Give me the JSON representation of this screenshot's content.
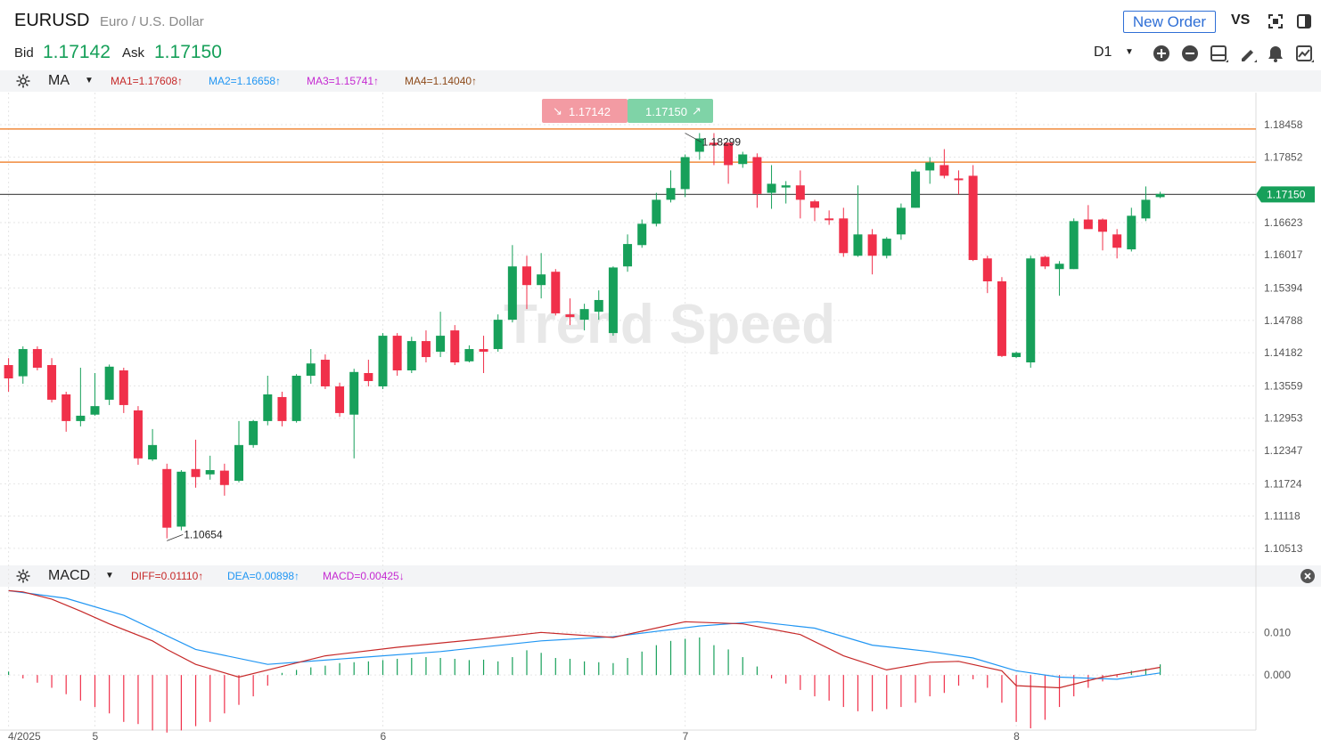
{
  "header": {
    "symbol": "EURUSD",
    "description": "Euro / U.S. Dollar",
    "bid_label": "Bid",
    "bid_value": "1.17142",
    "ask_label": "Ask",
    "ask_value": "1.17150",
    "new_order_label": "New Order",
    "vs_label": "VS",
    "timeframe": "D1",
    "watermark": "Trend Speed"
  },
  "toolbar_icons": [
    "expand-icon",
    "layout-icon",
    "zoom-in-icon",
    "zoom-out-icon",
    "panel-icon",
    "pencil-icon",
    "alert-bell-icon",
    "indicator-icon"
  ],
  "ma_bar": {
    "indicator": "MA",
    "values": [
      {
        "text": "MA1=1.17608↑",
        "color": "#c62828"
      },
      {
        "text": "MA2=1.16658↑",
        "color": "#2196f3"
      },
      {
        "text": "MA3=1.15741↑",
        "color": "#c52ad1"
      },
      {
        "text": "MA4=1.14040↑",
        "color": "#8d4a1a"
      }
    ]
  },
  "macd_bar": {
    "indicator": "MACD",
    "values": [
      {
        "text": "DIFF=0.01110↑",
        "color": "#c62828"
      },
      {
        "text": "DEA=0.00898↑",
        "color": "#2196f3"
      },
      {
        "text": "MACD=0.00425↓",
        "color": "#c52ad1"
      }
    ]
  },
  "quote_box": {
    "sell": "1.17142",
    "buy": "1.17150",
    "sell_color": "#f39ba3",
    "buy_color": "#7fd3a7"
  },
  "colors": {
    "up": "#17a05a",
    "down": "#f0304a",
    "orange_line": "#f08a3c",
    "price_line": "#555555",
    "diff": "#c62828",
    "dea": "#2196f3"
  },
  "chart_data": {
    "type": "candlestick",
    "yticks": [
      "1.18458",
      "1.17852",
      "1.16623",
      "1.16017",
      "1.15394",
      "1.14788",
      "1.14182",
      "1.13559",
      "1.12953",
      "1.12347",
      "1.11724",
      "1.11118",
      "1.10513"
    ],
    "ylim": [
      1.1021,
      1.1906
    ],
    "xlabels": [
      {
        "label": "4/2025",
        "index": 0
      },
      {
        "label": "5",
        "index": 6
      },
      {
        "label": "6",
        "index": 26
      },
      {
        "label": "7",
        "index": 47
      },
      {
        "label": "8",
        "index": 70
      }
    ],
    "current_price": "1.17150",
    "horizontal_lines": [
      1.18378,
      1.17756
    ],
    "annotations": [
      {
        "text": "1.18299",
        "index": 47,
        "value": 1.18299
      },
      {
        "text": "1.10654",
        "index": 11,
        "value": 1.10654
      }
    ],
    "candles": [
      [
        1.1395,
        1.137,
        1.1408,
        1.1345
      ],
      [
        1.1374,
        1.1425,
        1.143,
        1.136
      ],
      [
        1.1425,
        1.139,
        1.143,
        1.1385
      ],
      [
        1.1395,
        1.133,
        1.1408,
        1.1325
      ],
      [
        1.134,
        1.129,
        1.1345,
        1.127
      ],
      [
        1.129,
        1.13,
        1.139,
        1.128
      ],
      [
        1.1302,
        1.1318,
        1.138,
        1.13
      ],
      [
        1.133,
        1.1392,
        1.1396,
        1.132
      ],
      [
        1.1385,
        1.132,
        1.139,
        1.1305
      ],
      [
        1.131,
        1.122,
        1.1318,
        1.1208
      ],
      [
        1.1218,
        1.1245,
        1.1275,
        1.1215
      ],
      [
        1.12,
        1.109,
        1.121,
        1.107
      ],
      [
        1.1092,
        1.1195,
        1.1198,
        1.1085
      ],
      [
        1.12,
        1.1185,
        1.1255,
        1.1165
      ],
      [
        1.119,
        1.1198,
        1.1225,
        1.118
      ],
      [
        1.1197,
        1.117,
        1.121,
        1.115
      ],
      [
        1.1178,
        1.1245,
        1.129,
        1.1175
      ],
      [
        1.1245,
        1.129,
        1.1292,
        1.124
      ],
      [
        1.129,
        1.134,
        1.1375,
        1.1282
      ],
      [
        1.1335,
        1.129,
        1.1345,
        1.128
      ],
      [
        1.129,
        1.1375,
        1.1378,
        1.1287
      ],
      [
        1.1375,
        1.1398,
        1.1425,
        1.136
      ],
      [
        1.1405,
        1.1355,
        1.1415,
        1.135
      ],
      [
        1.1355,
        1.1305,
        1.1362,
        1.1298
      ],
      [
        1.1302,
        1.1382,
        1.1388,
        1.122
      ],
      [
        1.138,
        1.1365,
        1.1405,
        1.1355
      ],
      [
        1.1355,
        1.145,
        1.1455,
        1.135
      ],
      [
        1.145,
        1.1385,
        1.1455,
        1.1375
      ],
      [
        1.1385,
        1.144,
        1.1448,
        1.138
      ],
      [
        1.144,
        1.141,
        1.146,
        1.14
      ],
      [
        1.142,
        1.145,
        1.1495,
        1.141
      ],
      [
        1.146,
        1.14,
        1.147,
        1.1395
      ],
      [
        1.1402,
        1.1425,
        1.1432,
        1.14
      ],
      [
        1.1425,
        1.142,
        1.145,
        1.138
      ],
      [
        1.1425,
        1.148,
        1.149,
        1.142
      ],
      [
        1.148,
        1.158,
        1.162,
        1.1475
      ],
      [
        1.158,
        1.1545,
        1.16,
        1.15
      ],
      [
        1.1545,
        1.1565,
        1.1605,
        1.152
      ],
      [
        1.157,
        1.1492,
        1.1575,
        1.1488
      ],
      [
        1.149,
        1.1485,
        1.152,
        1.147
      ],
      [
        1.148,
        1.15,
        1.151,
        1.146
      ],
      [
        1.1495,
        1.1517,
        1.1535,
        1.148
      ],
      [
        1.1455,
        1.1578,
        1.158,
        1.145
      ],
      [
        1.158,
        1.1622,
        1.164,
        1.157
      ],
      [
        1.162,
        1.166,
        1.1668,
        1.1615
      ],
      [
        1.166,
        1.1705,
        1.1718,
        1.1655
      ],
      [
        1.1705,
        1.1727,
        1.176,
        1.17
      ],
      [
        1.1725,
        1.1785,
        1.179,
        1.171
      ],
      [
        1.1795,
        1.182,
        1.183,
        1.178
      ],
      [
        1.1812,
        1.1808,
        1.183,
        1.177
      ],
      [
        1.1812,
        1.177,
        1.1812,
        1.1735
      ],
      [
        1.1772,
        1.179,
        1.1795,
        1.1765
      ],
      [
        1.1785,
        1.1716,
        1.1792,
        1.169
      ],
      [
        1.1718,
        1.1735,
        1.177,
        1.1688
      ],
      [
        1.1728,
        1.1732,
        1.174,
        1.1698
      ],
      [
        1.1732,
        1.1705,
        1.176,
        1.167
      ],
      [
        1.1702,
        1.169,
        1.1705,
        1.1665
      ],
      [
        1.167,
        1.1668,
        1.1685,
        1.1658
      ],
      [
        1.167,
        1.1605,
        1.169,
        1.1598
      ],
      [
        1.16,
        1.164,
        1.1732,
        1.1598
      ],
      [
        1.164,
        1.16,
        1.165,
        1.1565
      ],
      [
        1.16,
        1.1632,
        1.1635,
        1.1595
      ],
      [
        1.164,
        1.169,
        1.1698,
        1.163
      ],
      [
        1.169,
        1.1758,
        1.1762,
        1.169
      ],
      [
        1.176,
        1.1775,
        1.1785,
        1.1735
      ],
      [
        1.177,
        1.175,
        1.18,
        1.1745
      ],
      [
        1.1745,
        1.1742,
        1.176,
        1.1715
      ],
      [
        1.175,
        1.1592,
        1.177,
        1.159
      ],
      [
        1.1595,
        1.1552,
        1.16,
        1.153
      ],
      [
        1.1552,
        1.1412,
        1.156,
        1.141
      ],
      [
        1.141,
        1.1418,
        1.142,
        1.1408
      ],
      [
        1.14,
        1.1595,
        1.16,
        1.139
      ],
      [
        1.1598,
        1.158,
        1.16,
        1.1575
      ],
      [
        1.1575,
        1.1585,
        1.159,
        1.1525
      ],
      [
        1.1575,
        1.1665,
        1.167,
        1.1575
      ],
      [
        1.1668,
        1.165,
        1.1695,
        1.1655
      ],
      [
        1.1668,
        1.1645,
        1.167,
        1.161
      ],
      [
        1.164,
        1.1615,
        1.165,
        1.1595
      ],
      [
        1.1612,
        1.1675,
        1.169,
        1.1608
      ],
      [
        1.167,
        1.1705,
        1.173,
        1.1665
      ],
      [
        1.171,
        1.1716,
        1.172,
        1.1708
      ]
    ],
    "macd": {
      "yticks": [
        "0.010",
        "0.000"
      ],
      "ylim": [
        -0.0125,
        0.0205
      ],
      "diff": [
        [
          0,
          0.0198
        ],
        [
          1,
          0.0195
        ],
        [
          3,
          0.0178
        ],
        [
          5,
          0.015
        ],
        [
          7,
          0.012
        ],
        [
          10,
          0.008
        ],
        [
          11,
          0.006
        ],
        [
          13,
          0.0025
        ],
        [
          16,
          -0.0005
        ],
        [
          19,
          0.002
        ],
        [
          22,
          0.0045
        ],
        [
          27,
          0.0065
        ],
        [
          33,
          0.0085
        ],
        [
          37,
          0.01
        ],
        [
          42,
          0.0088
        ],
        [
          47,
          0.0125
        ],
        [
          51,
          0.012
        ],
        [
          55,
          0.0095
        ],
        [
          58,
          0.0045
        ],
        [
          61,
          0.0012
        ],
        [
          64,
          0.003
        ],
        [
          66,
          0.0032
        ],
        [
          69,
          0.001
        ],
        [
          70,
          -0.0025
        ],
        [
          73,
          -0.003
        ],
        [
          76,
          -0.0005
        ],
        [
          79,
          0.0012
        ],
        [
          80,
          0.0018
        ]
      ],
      "dea": [
        [
          0,
          0.0198
        ],
        [
          4,
          0.018
        ],
        [
          8,
          0.014
        ],
        [
          13,
          0.006
        ],
        [
          18,
          0.0025
        ],
        [
          24,
          0.004
        ],
        [
          30,
          0.0055
        ],
        [
          37,
          0.008
        ],
        [
          42,
          0.009
        ],
        [
          48,
          0.0115
        ],
        [
          52,
          0.0125
        ],
        [
          56,
          0.011
        ],
        [
          60,
          0.007
        ],
        [
          64,
          0.0055
        ],
        [
          67,
          0.004
        ],
        [
          70,
          0.001
        ],
        [
          73,
          -0.0005
        ],
        [
          77,
          -0.001
        ],
        [
          80,
          0.0005
        ]
      ],
      "hist": [
        0.0008,
        -0.0008,
        -0.0018,
        -0.003,
        -0.0045,
        -0.006,
        -0.0075,
        -0.009,
        -0.011,
        -0.0115,
        -0.013,
        -0.0135,
        -0.013,
        -0.012,
        -0.011,
        -0.009,
        -0.007,
        -0.005,
        -0.0025,
        0.0005,
        0.0012,
        0.0018,
        0.0022,
        0.0028,
        0.003,
        0.0032,
        0.0035,
        0.0038,
        0.004,
        0.0042,
        0.004,
        0.0038,
        0.0035,
        0.0036,
        0.0032,
        0.0042,
        0.0058,
        0.0052,
        0.004,
        0.0038,
        0.0032,
        0.003,
        0.0028,
        0.004,
        0.0055,
        0.007,
        0.008,
        0.0085,
        0.0088,
        0.007,
        0.006,
        0.0042,
        0.002,
        -0.0008,
        -0.002,
        -0.0035,
        -0.005,
        -0.006,
        -0.0075,
        -0.0085,
        -0.0085,
        -0.008,
        -0.0075,
        -0.0065,
        -0.005,
        -0.0042,
        -0.0025,
        -0.001,
        -0.003,
        -0.0065,
        -0.011,
        -0.0125,
        -0.0105,
        -0.0075,
        -0.005,
        -0.003,
        -0.0015,
        -0.0005,
        0.001,
        0.0015,
        0.0025
      ]
    }
  }
}
